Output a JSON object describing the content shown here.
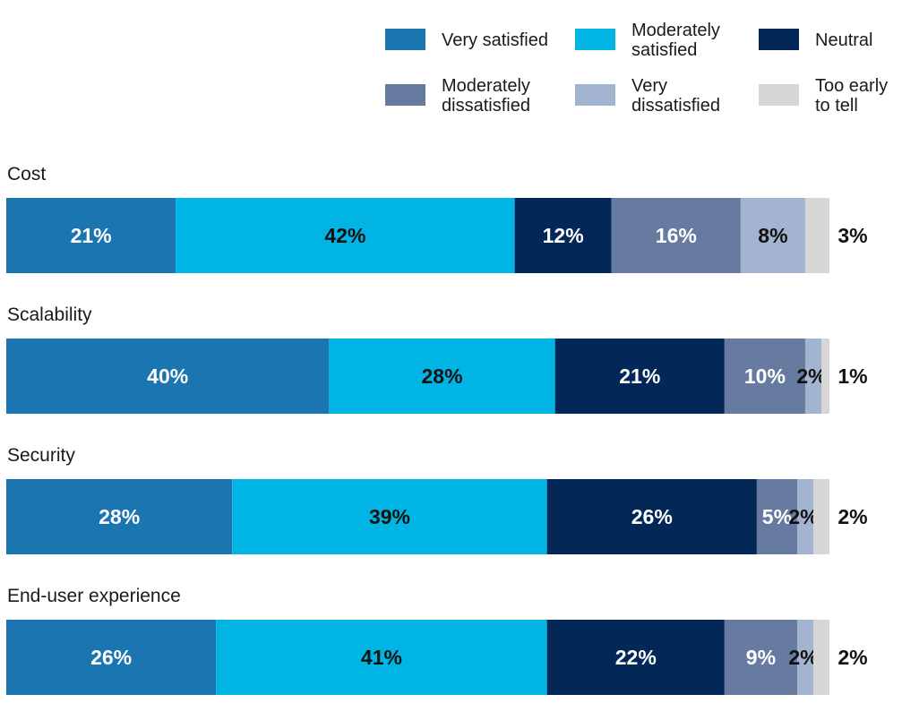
{
  "chart_data": {
    "type": "bar",
    "orientation": "horizontal",
    "stacked": true,
    "normalized": true,
    "title": "",
    "xlabel": "",
    "ylabel": "",
    "legend_position": "top-right",
    "categories": [
      "Cost",
      "Scalability",
      "Security",
      "End-user experience"
    ],
    "series": [
      {
        "name": "Very satisfied",
        "color": "#1b75b0",
        "label_color": "#ffffff",
        "values": [
          21,
          40,
          28,
          26
        ]
      },
      {
        "name": "Moderately satisfied",
        "color": "#00b5e4",
        "label_color": "#111111",
        "values": [
          42,
          28,
          39,
          41
        ]
      },
      {
        "name": "Neutral",
        "color": "#032858",
        "label_color": "#ffffff",
        "values": [
          12,
          21,
          26,
          22
        ]
      },
      {
        "name": "Moderately dissatisfied",
        "color": "#677ba0",
        "label_color": "#ffffff",
        "values": [
          16,
          10,
          5,
          9
        ]
      },
      {
        "name": "Very dissatisfied",
        "color": "#a2b4cf",
        "label_color": "#111111",
        "values": [
          8,
          2,
          2,
          2
        ]
      },
      {
        "name": "Too early to tell",
        "color": "#d6d6d6",
        "label_color": "#111111",
        "values": [
          3,
          1,
          2,
          2
        ]
      }
    ],
    "legend_lines": [
      [
        "Very satisfied"
      ],
      [
        "Moderately",
        "satisfied"
      ],
      [
        "Neutral"
      ],
      [
        "Moderately",
        "dissatisfied"
      ],
      [
        "Very",
        "dissatisfied"
      ],
      [
        "Too early",
        "to tell"
      ]
    ],
    "value_suffix": "%"
  }
}
